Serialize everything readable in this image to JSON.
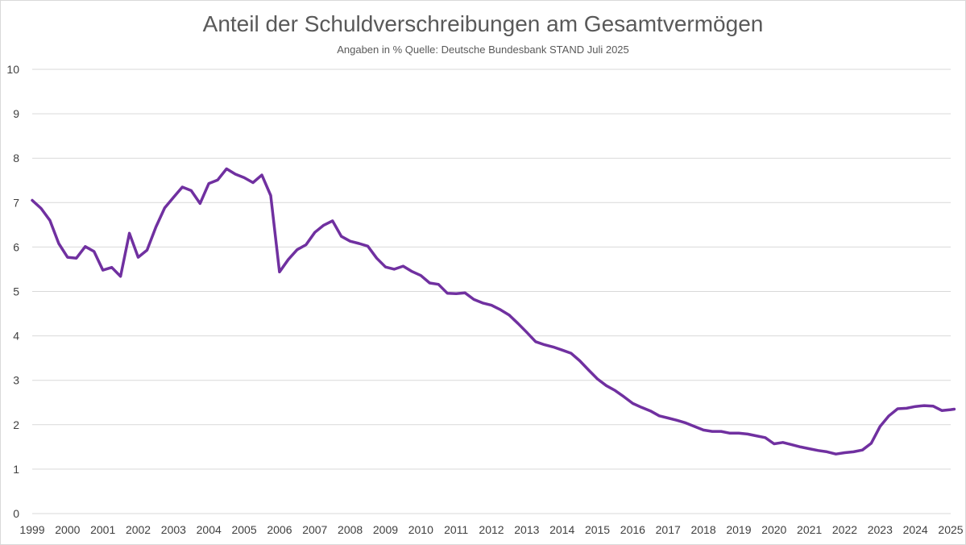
{
  "chart_data": {
    "type": "line",
    "title": "Anteil der Schuldverschreibungen am Gesamtvermögen",
    "subtitle": "Angaben in % Quelle: Deutsche Bundesbank STAND Juli 2025",
    "xlabel": "",
    "ylabel": "",
    "ylim": [
      0,
      10
    ],
    "yticks": [
      "0",
      "1",
      "2",
      "3",
      "4",
      "5",
      "6",
      "7",
      "8",
      "9",
      "10"
    ],
    "xlim": [
      1999,
      2025
    ],
    "xticks": [
      "1999",
      "2000",
      "2001",
      "2002",
      "2003",
      "2004",
      "2005",
      "2006",
      "2007",
      "2008",
      "2009",
      "2010",
      "2011",
      "2012",
      "2013",
      "2014",
      "2015",
      "2016",
      "2017",
      "2018",
      "2019",
      "2020",
      "2021",
      "2022",
      "2023",
      "2024",
      "2025"
    ],
    "grid": true,
    "line_color": "#7030a0",
    "series": [
      {
        "values": [
          [
            1999.0,
            7.05
          ],
          [
            1999.25,
            6.87
          ],
          [
            1999.5,
            6.6
          ],
          [
            1999.75,
            6.08
          ],
          [
            2000.0,
            5.77
          ],
          [
            2000.25,
            5.75
          ],
          [
            2000.5,
            6.01
          ],
          [
            2000.75,
            5.9
          ],
          [
            2001.0,
            5.48
          ],
          [
            2001.25,
            5.54
          ],
          [
            2001.5,
            5.34
          ],
          [
            2001.75,
            6.31
          ],
          [
            2002.0,
            5.77
          ],
          [
            2002.25,
            5.93
          ],
          [
            2002.5,
            6.45
          ],
          [
            2002.75,
            6.88
          ],
          [
            2003.0,
            7.12
          ],
          [
            2003.25,
            7.35
          ],
          [
            2003.5,
            7.27
          ],
          [
            2003.75,
            6.98
          ],
          [
            2004.0,
            7.43
          ],
          [
            2004.25,
            7.51
          ],
          [
            2004.5,
            7.76
          ],
          [
            2004.75,
            7.64
          ],
          [
            2005.0,
            7.56
          ],
          [
            2005.25,
            7.45
          ],
          [
            2005.5,
            7.62
          ],
          [
            2005.75,
            7.16
          ],
          [
            2006.0,
            5.44
          ],
          [
            2006.25,
            5.72
          ],
          [
            2006.5,
            5.94
          ],
          [
            2006.75,
            6.05
          ],
          [
            2007.0,
            6.33
          ],
          [
            2007.25,
            6.49
          ],
          [
            2007.5,
            6.59
          ],
          [
            2007.75,
            6.24
          ],
          [
            2008.0,
            6.13
          ],
          [
            2008.25,
            6.08
          ],
          [
            2008.5,
            6.02
          ],
          [
            2008.75,
            5.75
          ],
          [
            2009.0,
            5.55
          ],
          [
            2009.25,
            5.5
          ],
          [
            2009.5,
            5.57
          ],
          [
            2009.75,
            5.45
          ],
          [
            2010.0,
            5.36
          ],
          [
            2010.25,
            5.19
          ],
          [
            2010.5,
            5.16
          ],
          [
            2010.75,
            4.96
          ],
          [
            2011.0,
            4.95
          ],
          [
            2011.25,
            4.97
          ],
          [
            2011.5,
            4.82
          ],
          [
            2011.75,
            4.74
          ],
          [
            2012.0,
            4.69
          ],
          [
            2012.25,
            4.59
          ],
          [
            2012.5,
            4.47
          ],
          [
            2012.75,
            4.28
          ],
          [
            2013.0,
            4.08
          ],
          [
            2013.25,
            3.87
          ],
          [
            2013.5,
            3.8
          ],
          [
            2013.75,
            3.75
          ],
          [
            2014.0,
            3.68
          ],
          [
            2014.25,
            3.61
          ],
          [
            2014.5,
            3.44
          ],
          [
            2014.75,
            3.23
          ],
          [
            2015.0,
            3.03
          ],
          [
            2015.25,
            2.88
          ],
          [
            2015.5,
            2.77
          ],
          [
            2015.75,
            2.63
          ],
          [
            2016.0,
            2.48
          ],
          [
            2016.25,
            2.39
          ],
          [
            2016.5,
            2.31
          ],
          [
            2016.75,
            2.2
          ],
          [
            2017.0,
            2.15
          ],
          [
            2017.25,
            2.1
          ],
          [
            2017.5,
            2.04
          ],
          [
            2017.75,
            1.96
          ],
          [
            2018.0,
            1.88
          ],
          [
            2018.25,
            1.85
          ],
          [
            2018.5,
            1.85
          ],
          [
            2018.75,
            1.81
          ],
          [
            2019.0,
            1.81
          ],
          [
            2019.25,
            1.79
          ],
          [
            2019.5,
            1.75
          ],
          [
            2019.75,
            1.71
          ],
          [
            2020.0,
            1.57
          ],
          [
            2020.25,
            1.6
          ],
          [
            2020.5,
            1.55
          ],
          [
            2020.75,
            1.5
          ],
          [
            2021.0,
            1.46
          ],
          [
            2021.25,
            1.42
          ],
          [
            2021.5,
            1.39
          ],
          [
            2021.75,
            1.34
          ],
          [
            2022.0,
            1.37
          ],
          [
            2022.25,
            1.39
          ],
          [
            2022.5,
            1.43
          ],
          [
            2022.75,
            1.58
          ],
          [
            2023.0,
            1.96
          ],
          [
            2023.25,
            2.2
          ],
          [
            2023.5,
            2.36
          ],
          [
            2023.75,
            2.37
          ],
          [
            2024.0,
            2.41
          ],
          [
            2024.25,
            2.43
          ],
          [
            2024.5,
            2.42
          ],
          [
            2024.75,
            2.32
          ],
          [
            2025.0,
            2.34
          ],
          [
            2025.1,
            2.35
          ]
        ]
      }
    ]
  }
}
